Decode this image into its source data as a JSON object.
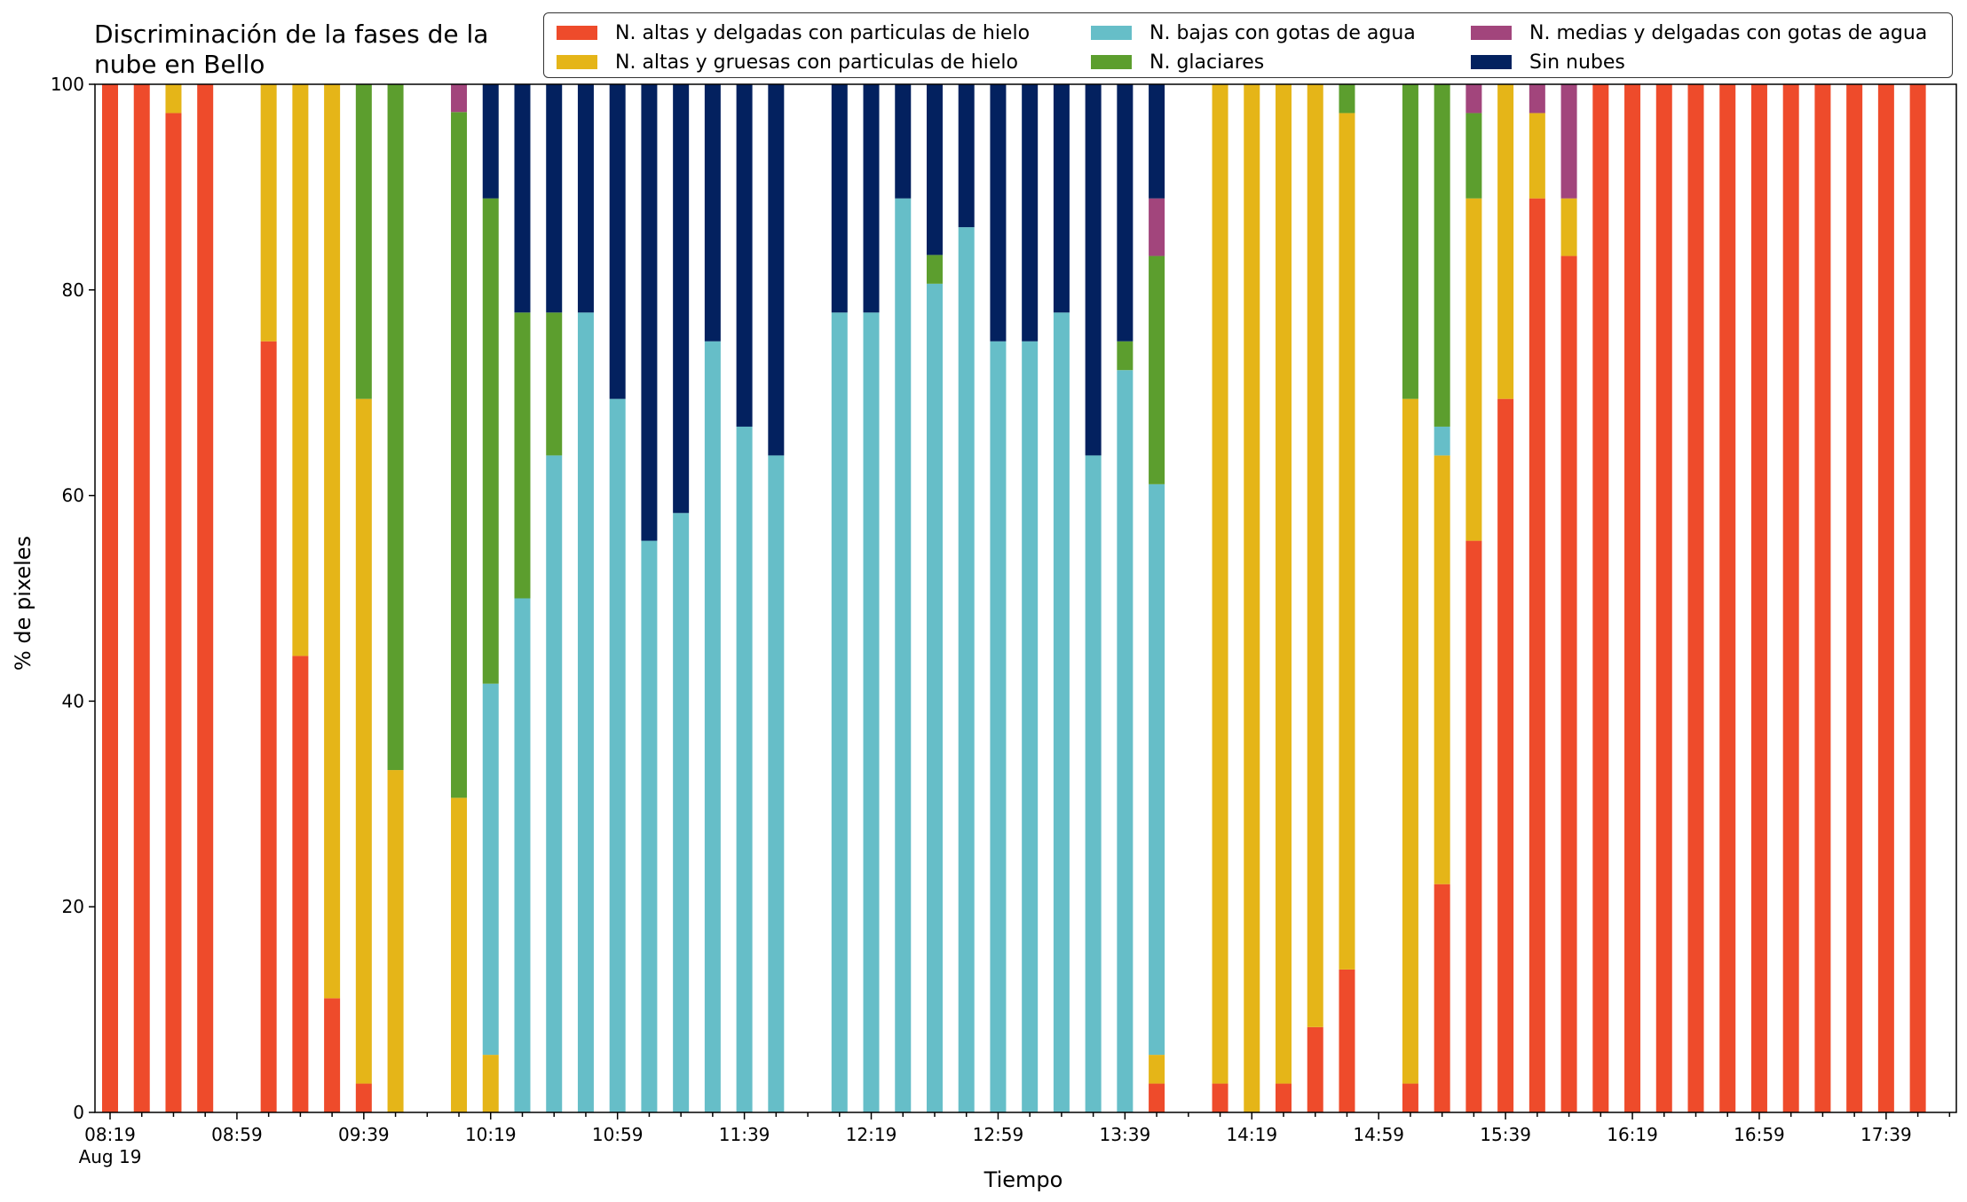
{
  "chart_data": {
    "type": "bar",
    "stacked": true,
    "title": "Discriminación de la fases de la\nnube en Bello",
    "xlabel": "Tiempo",
    "ylabel": "% de pixeles",
    "ylim": [
      0,
      100
    ],
    "yticks": [
      0,
      20,
      40,
      60,
      80,
      100
    ],
    "legend": {
      "placement": "top-right",
      "columns": 3
    },
    "x_tick_labels": [
      {
        "slot": 0,
        "label": "08:19",
        "sublabel": "Aug 19"
      },
      {
        "slot": 4,
        "label": "08:59"
      },
      {
        "slot": 8,
        "label": "09:39"
      },
      {
        "slot": 12,
        "label": "10:19"
      },
      {
        "slot": 16,
        "label": "10:59"
      },
      {
        "slot": 20,
        "label": "11:39"
      },
      {
        "slot": 24,
        "label": "12:19"
      },
      {
        "slot": 28,
        "label": "12:59"
      },
      {
        "slot": 32,
        "label": "13:39"
      },
      {
        "slot": 36,
        "label": "14:19"
      },
      {
        "slot": 40,
        "label": "14:59"
      },
      {
        "slot": 44,
        "label": "15:39"
      },
      {
        "slot": 48,
        "label": "16:19"
      },
      {
        "slot": 52,
        "label": "16:59"
      },
      {
        "slot": 56,
        "label": "17:39"
      }
    ],
    "series": [
      {
        "name": "N. altas y delgadas con particulas de hielo",
        "color": "#ee4b2b"
      },
      {
        "name": "N. altas y gruesas con particulas de hielo",
        "color": "#e5b518"
      },
      {
        "name": "N. bajas con gotas de agua",
        "color": "#66bec8"
      },
      {
        "name": "N. glaciares",
        "color": "#5c9e2e"
      },
      {
        "name": "N. medias y delgadas con gotas de agua",
        "color": "#a2457c"
      },
      {
        "name": "Sin nubes",
        "color": "#03215f"
      }
    ],
    "bars": [
      {
        "slot": 0,
        "values": [
          100,
          0,
          0,
          0,
          0,
          0
        ]
      },
      {
        "slot": 1,
        "values": [
          100,
          0,
          0,
          0,
          0,
          0
        ]
      },
      {
        "slot": 2,
        "values": [
          97.2,
          2.8,
          0,
          0,
          0,
          0
        ]
      },
      {
        "slot": 3,
        "values": [
          100,
          0,
          0,
          0,
          0,
          0
        ]
      },
      {
        "slot": 5,
        "values": [
          75,
          25,
          0,
          0,
          0,
          0
        ]
      },
      {
        "slot": 6,
        "values": [
          44.4,
          55.6,
          0,
          0,
          0,
          0
        ]
      },
      {
        "slot": 7,
        "values": [
          11.1,
          88.9,
          0,
          0,
          0,
          0
        ]
      },
      {
        "slot": 8,
        "values": [
          2.8,
          66.6,
          0,
          30.6,
          0,
          0
        ]
      },
      {
        "slot": 9,
        "values": [
          0,
          33.3,
          0,
          66.7,
          0,
          0
        ]
      },
      {
        "slot": 11,
        "values": [
          0,
          30.6,
          0,
          66.7,
          2.7,
          0
        ]
      },
      {
        "slot": 12,
        "values": [
          0,
          5.6,
          36.1,
          47.2,
          0,
          11.1
        ]
      },
      {
        "slot": 13,
        "values": [
          0,
          0,
          50,
          27.8,
          0,
          22.2
        ]
      },
      {
        "slot": 14,
        "values": [
          0,
          0,
          63.9,
          13.9,
          0,
          22.2
        ]
      },
      {
        "slot": 15,
        "values": [
          0,
          0,
          77.8,
          0,
          0,
          22.2
        ]
      },
      {
        "slot": 16,
        "values": [
          0,
          0,
          69.4,
          0,
          0,
          30.6
        ]
      },
      {
        "slot": 17,
        "values": [
          0,
          0,
          55.6,
          0,
          0,
          44.4
        ]
      },
      {
        "slot": 18,
        "values": [
          0,
          0,
          58.3,
          0,
          0,
          41.7
        ]
      },
      {
        "slot": 19,
        "values": [
          0,
          0,
          75,
          0,
          0,
          25
        ]
      },
      {
        "slot": 20,
        "values": [
          0,
          0,
          66.7,
          0,
          0,
          33.3
        ]
      },
      {
        "slot": 21,
        "values": [
          0,
          0,
          63.9,
          0,
          0,
          36.1
        ]
      },
      {
        "slot": 23,
        "values": [
          0,
          0,
          77.8,
          0,
          0,
          22.2
        ]
      },
      {
        "slot": 24,
        "values": [
          0,
          0,
          77.8,
          0,
          0,
          22.2
        ]
      },
      {
        "slot": 25,
        "values": [
          0,
          0,
          88.9,
          0,
          0,
          11.1
        ]
      },
      {
        "slot": 26,
        "values": [
          0,
          0,
          80.6,
          2.8,
          0,
          16.6
        ]
      },
      {
        "slot": 27,
        "values": [
          0,
          0,
          86.1,
          0,
          0,
          13.9
        ]
      },
      {
        "slot": 28,
        "values": [
          0,
          0,
          75,
          0,
          0,
          25
        ]
      },
      {
        "slot": 29,
        "values": [
          0,
          0,
          75,
          0,
          0,
          25
        ]
      },
      {
        "slot": 30,
        "values": [
          0,
          0,
          77.8,
          0,
          0,
          22.2
        ]
      },
      {
        "slot": 31,
        "values": [
          0,
          0,
          63.9,
          0,
          0,
          36.1
        ]
      },
      {
        "slot": 32,
        "values": [
          0,
          0,
          72.2,
          2.8,
          0,
          25
        ]
      },
      {
        "slot": 33,
        "values": [
          2.8,
          2.8,
          55.5,
          22.2,
          5.6,
          11.1
        ]
      },
      {
        "slot": 35,
        "values": [
          2.8,
          97.2,
          0,
          0,
          0,
          0
        ]
      },
      {
        "slot": 36,
        "values": [
          0,
          100,
          0,
          0,
          0,
          0
        ]
      },
      {
        "slot": 37,
        "values": [
          2.8,
          97.2,
          0,
          0,
          0,
          0
        ]
      },
      {
        "slot": 38,
        "values": [
          8.3,
          91.7,
          0,
          0,
          0,
          0
        ]
      },
      {
        "slot": 39,
        "values": [
          13.9,
          83.3,
          0,
          2.8,
          0,
          0
        ]
      },
      {
        "slot": 41,
        "values": [
          2.8,
          66.6,
          0,
          30.6,
          0,
          0
        ]
      },
      {
        "slot": 42,
        "values": [
          22.2,
          41.7,
          2.8,
          33.3,
          0,
          0
        ]
      },
      {
        "slot": 43,
        "values": [
          55.6,
          33.3,
          0,
          8.3,
          2.8,
          0
        ]
      },
      {
        "slot": 44,
        "values": [
          69.4,
          30.6,
          0,
          0,
          0,
          0
        ]
      },
      {
        "slot": 45,
        "values": [
          88.9,
          8.3,
          0,
          0,
          2.8,
          0
        ]
      },
      {
        "slot": 46,
        "values": [
          83.3,
          5.6,
          0,
          0,
          11.1,
          0
        ]
      },
      {
        "slot": 47,
        "values": [
          100,
          0,
          0,
          0,
          0,
          0
        ]
      },
      {
        "slot": 48,
        "values": [
          100,
          0,
          0,
          0,
          0,
          0
        ]
      },
      {
        "slot": 49,
        "values": [
          100,
          0,
          0,
          0,
          0,
          0
        ]
      },
      {
        "slot": 50,
        "values": [
          100,
          0,
          0,
          0,
          0,
          0
        ]
      },
      {
        "slot": 51,
        "values": [
          100,
          0,
          0,
          0,
          0,
          0
        ]
      },
      {
        "slot": 52,
        "values": [
          100,
          0,
          0,
          0,
          0,
          0
        ]
      },
      {
        "slot": 53,
        "values": [
          100,
          0,
          0,
          0,
          0,
          0
        ]
      },
      {
        "slot": 54,
        "values": [
          100,
          0,
          0,
          0,
          0,
          0
        ]
      },
      {
        "slot": 55,
        "values": [
          100,
          0,
          0,
          0,
          0,
          0
        ]
      },
      {
        "slot": 56,
        "values": [
          100,
          0,
          0,
          0,
          0,
          0
        ]
      },
      {
        "slot": 57,
        "values": [
          100,
          0,
          0,
          0,
          0,
          0
        ]
      }
    ]
  }
}
